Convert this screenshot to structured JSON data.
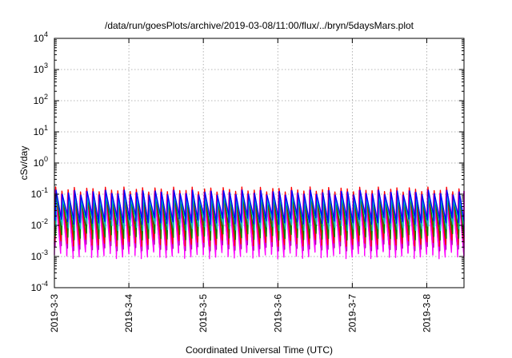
{
  "chart_data": {
    "type": "line",
    "title": "/data/run/goesPlots/archive/2019-03-08/11:00/flux/../bryn/5daysMars.plot",
    "xlabel": "Coordinated Universal Time (UTC)",
    "ylabel": "cSv/day",
    "yscale": "log",
    "ylim": [
      0.0001,
      10000
    ],
    "xlim_days": [
      0,
      5.5
    ],
    "grid": true,
    "x_ticks": [
      {
        "label": "2019-3-3",
        "day": 0
      },
      {
        "label": "2019-3-4",
        "day": 1
      },
      {
        "label": "2019-3-5",
        "day": 2
      },
      {
        "label": "2019-3-6",
        "day": 3
      },
      {
        "label": "2019-3-7",
        "day": 4
      },
      {
        "label": "2019-3-8",
        "day": 5
      }
    ],
    "y_ticks": [
      {
        "base": "10",
        "exp": "-4",
        "value": 0.0001
      },
      {
        "base": "10",
        "exp": "-3",
        "value": 0.001
      },
      {
        "base": "10",
        "exp": "-2",
        "value": 0.01
      },
      {
        "base": "10",
        "exp": "-1",
        "value": 0.1
      },
      {
        "base": "10",
        "exp": "0",
        "value": 1
      },
      {
        "base": "10",
        "exp": "1",
        "value": 10
      },
      {
        "base": "10",
        "exp": "2",
        "value": 100
      },
      {
        "base": "10",
        "exp": "3",
        "value": 1000
      },
      {
        "base": "10",
        "exp": "4",
        "value": 10000
      }
    ],
    "series": [
      {
        "color": "#ff00ff",
        "peak_offset": 0,
        "min_log": -2.95,
        "max_log": -0.95,
        "repeat_bands": 3
      },
      {
        "color": "#b000b0",
        "peak_offset": 0.01,
        "min_log": -2.7,
        "max_log": -1.0
      },
      {
        "color": "#ff0000",
        "peak_offset": 0.005,
        "min_log": -2.55,
        "max_log": -0.85
      },
      {
        "color": "#008000",
        "peak_offset": 0.015,
        "min_log": -2.35,
        "max_log": -1.05
      },
      {
        "color": "#00c0c0",
        "peak_offset": 0.02,
        "min_log": -2.05,
        "max_log": -1.1
      },
      {
        "color": "#0000ff",
        "peak_offset": 0.01,
        "min_log": -1.85,
        "max_log": -0.95
      }
    ],
    "cycle_period_days": 0.0833,
    "notes_pattern": "sawtooth: sharp rise then decay, repeating"
  }
}
